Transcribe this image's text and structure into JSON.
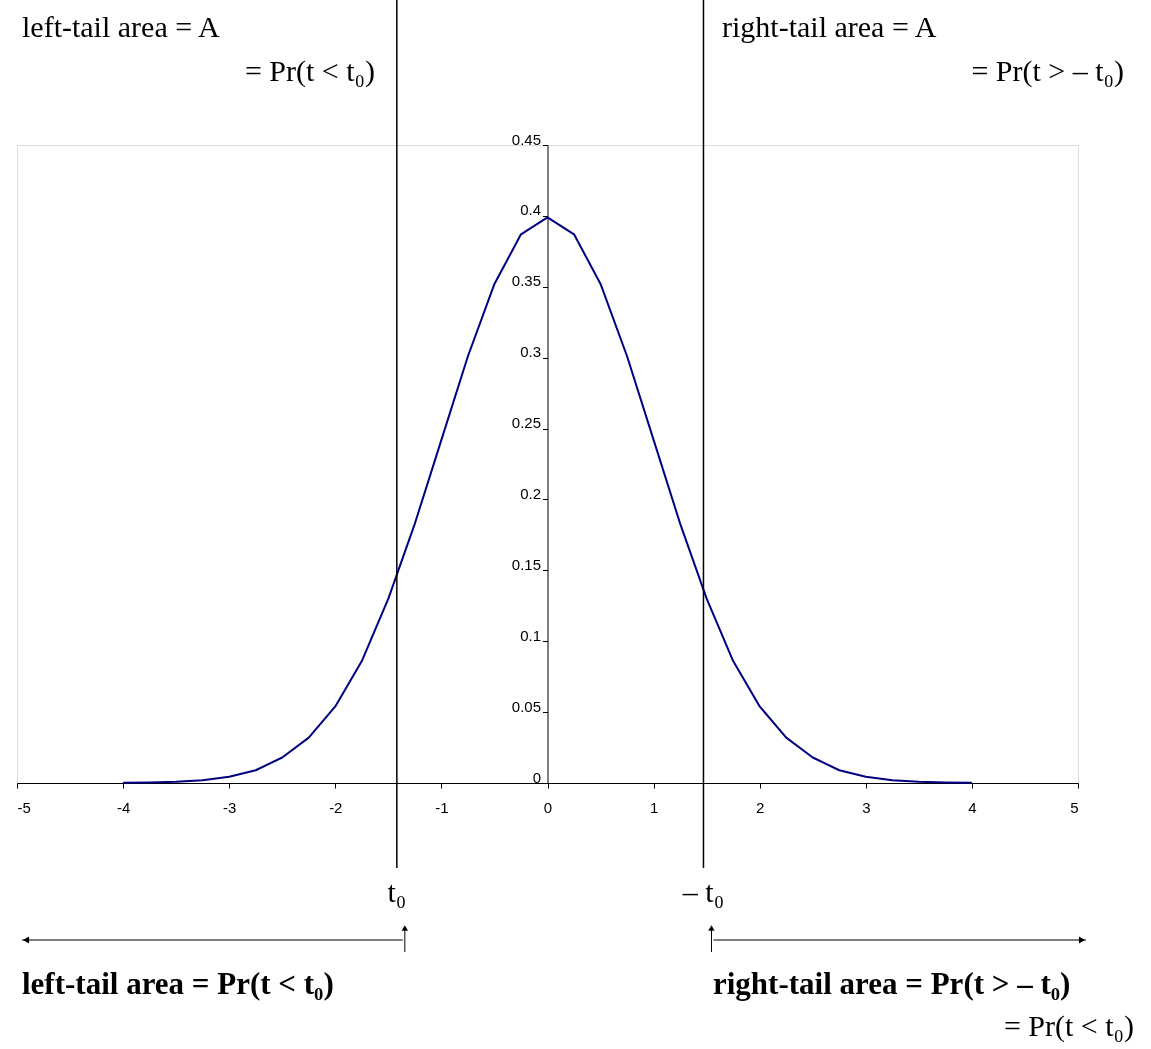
{
  "chart_data": {
    "type": "line",
    "x": [
      -4,
      -3.75,
      -3.5,
      -3.25,
      -3,
      -2.75,
      -2.5,
      -2.25,
      -2,
      -1.75,
      -1.5,
      -1.25,
      -1,
      -0.75,
      -0.5,
      -0.25,
      0,
      0.25,
      0.5,
      0.75,
      1,
      1.25,
      1.5,
      1.75,
      2,
      2.25,
      2.5,
      2.75,
      3,
      3.25,
      3.5,
      3.75,
      4
    ],
    "series": [
      {
        "color": "#000080",
        "values": [
          0.0001,
          0.0004,
          0.0009,
          0.002,
          0.0044,
          0.009,
          0.018,
          0.032,
          0.054,
          0.086,
          0.13,
          0.183,
          0.242,
          0.301,
          0.352,
          0.387,
          0.399,
          0.387,
          0.352,
          0.301,
          0.242,
          0.183,
          0.13,
          0.086,
          0.054,
          0.032,
          0.018,
          0.009,
          0.0044,
          0.002,
          0.0009,
          0.0004,
          0.0001
        ]
      }
    ],
    "xlim": [
      -5,
      5
    ],
    "xticks": [
      -5,
      -4,
      -3,
      -2,
      -1,
      0,
      1,
      2,
      3,
      4,
      5
    ],
    "ylim": [
      0,
      0.45
    ],
    "yticks": [
      0,
      0.05,
      0.1,
      0.15,
      0.2,
      0.25,
      0.3,
      0.35,
      0.4,
      0.45
    ],
    "grid": false,
    "marker": "none",
    "line_style": "solid",
    "ref_lines": [
      {
        "axis": "x",
        "value": -1.42,
        "label": "t₀",
        "color": "#000000"
      },
      {
        "axis": "x",
        "value": 1.47,
        "label": "– t₀",
        "color": "#000000"
      }
    ],
    "annotations": [
      "left-tail area = A",
      "= Pr(t < t₀)",
      "right-tail area = A",
      "= Pr(t > – t₀)",
      "left-tail area = Pr(t < t₀)",
      "right-tail area = Pr(t > – t₀)",
      "= Pr(t < t₀)"
    ]
  }
}
